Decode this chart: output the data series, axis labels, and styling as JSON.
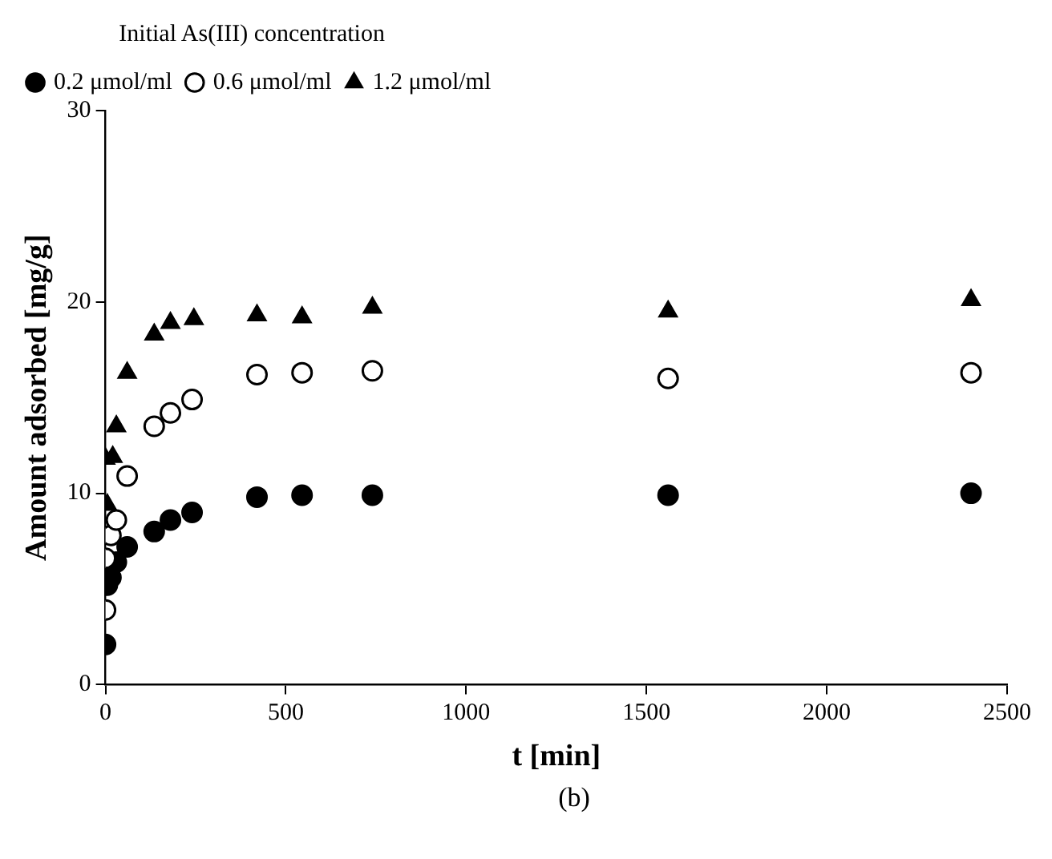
{
  "chart_data": {
    "type": "scatter",
    "xlabel": "t [min]",
    "ylabel": "Amount adsorbed [mg/g]",
    "legend_title": "Initial As(III) concentration",
    "legend": "top left",
    "grid": false,
    "annotations": [
      "(b)"
    ],
    "xlim": [
      0,
      2500
    ],
    "xticks": [
      0,
      500,
      1000,
      1500,
      2000,
      2500
    ],
    "ylim": [
      0,
      30
    ],
    "yticks": [
      0,
      10,
      20,
      30
    ],
    "series": [
      {
        "name": "0.2 μmol/ml",
        "color": "#000000",
        "marker": "circle",
        "x": [
          0,
          5,
          15,
          30,
          60,
          135,
          180,
          240,
          420,
          545,
          740,
          1560,
          2400
        ],
        "values": [
          2.1,
          5.2,
          5.6,
          6.4,
          7.2,
          8.0,
          8.6,
          9.0,
          9.8,
          9.9,
          9.9,
          9.9,
          10.0
        ]
      },
      {
        "name": "0.6 μmol/ml",
        "color": "#ffffff",
        "marker": "circle",
        "x": [
          0,
          0,
          15,
          30,
          60,
          135,
          180,
          240,
          420,
          545,
          740,
          1560,
          2400
        ],
        "values": [
          3.9,
          6.6,
          7.8,
          8.6,
          10.9,
          13.5,
          14.2,
          14.9,
          16.2,
          16.3,
          16.4,
          16.0,
          16.3
        ]
      },
      {
        "name": "1.2 μmol/ml",
        "color": "#000000",
        "marker": "triangle",
        "x": [
          0,
          5,
          20,
          30,
          60,
          135,
          180,
          245,
          420,
          545,
          740,
          1560,
          2400
        ],
        "values": [
          11.8,
          9.4,
          11.9,
          13.5,
          16.3,
          18.3,
          18.9,
          19.1,
          19.3,
          19.2,
          19.7,
          19.5,
          20.1
        ]
      }
    ]
  }
}
